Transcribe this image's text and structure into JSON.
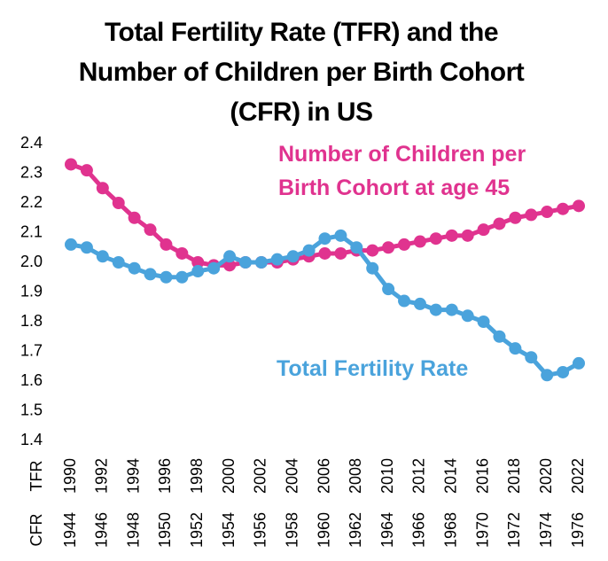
{
  "chart_data": {
    "type": "line",
    "title": "Total Fertility Rate (TFR) and the Number of Children per Birth Cohort (CFR) in US",
    "x_row_labels": [
      "TFR",
      "CFR"
    ],
    "categories": [
      "1990",
      null,
      "1992",
      null,
      "1994",
      null,
      "1996",
      null,
      "1998",
      null,
      "2000",
      null,
      "2002",
      null,
      "2004",
      null,
      "2006",
      null,
      "2008",
      null,
      "2010",
      null,
      "2012",
      null,
      "2014",
      null,
      "2016",
      null,
      "2018",
      null,
      "2020",
      null,
      "2022"
    ],
    "categories2": [
      "1944",
      null,
      "1946",
      null,
      "1948",
      null,
      "1950",
      null,
      "1952",
      null,
      "1954",
      null,
      "1956",
      null,
      "1958",
      null,
      "1960",
      null,
      "1962",
      null,
      "1964",
      null,
      "1966",
      null,
      "1968",
      null,
      "1970",
      null,
      "1972",
      null,
      "1974",
      null,
      "1976"
    ],
    "series": [
      {
        "name": "Number of Children per Birth Cohort at age 45",
        "color": "#e0338f",
        "values": [
          2.33,
          2.31,
          2.25,
          2.2,
          2.15,
          2.11,
          2.06,
          2.03,
          2.0,
          1.99,
          1.99,
          2.0,
          2.0,
          2.0,
          2.01,
          2.02,
          2.03,
          2.03,
          2.04,
          2.04,
          2.05,
          2.06,
          2.07,
          2.08,
          2.09,
          2.09,
          2.11,
          2.13,
          2.15,
          2.16,
          2.17,
          2.18,
          2.19
        ]
      },
      {
        "name": "Total Fertility Rate",
        "color": "#4aa3dc",
        "values": [
          2.06,
          2.05,
          2.02,
          2.0,
          1.98,
          1.96,
          1.95,
          1.95,
          1.97,
          1.98,
          2.02,
          2.0,
          2.0,
          2.01,
          2.02,
          2.04,
          2.08,
          2.09,
          2.05,
          1.98,
          1.91,
          1.87,
          1.86,
          1.84,
          1.84,
          1.82,
          1.8,
          1.75,
          1.71,
          1.68,
          1.62,
          1.63,
          1.66
        ]
      }
    ],
    "ylim": [
      1.4,
      2.4
    ],
    "yticks": [
      1.4,
      1.5,
      1.6,
      1.7,
      1.8,
      1.9,
      {
        "value": 2,
        "label": "2.0"
      },
      2.1,
      2.2,
      2.3,
      2.4
    ]
  }
}
